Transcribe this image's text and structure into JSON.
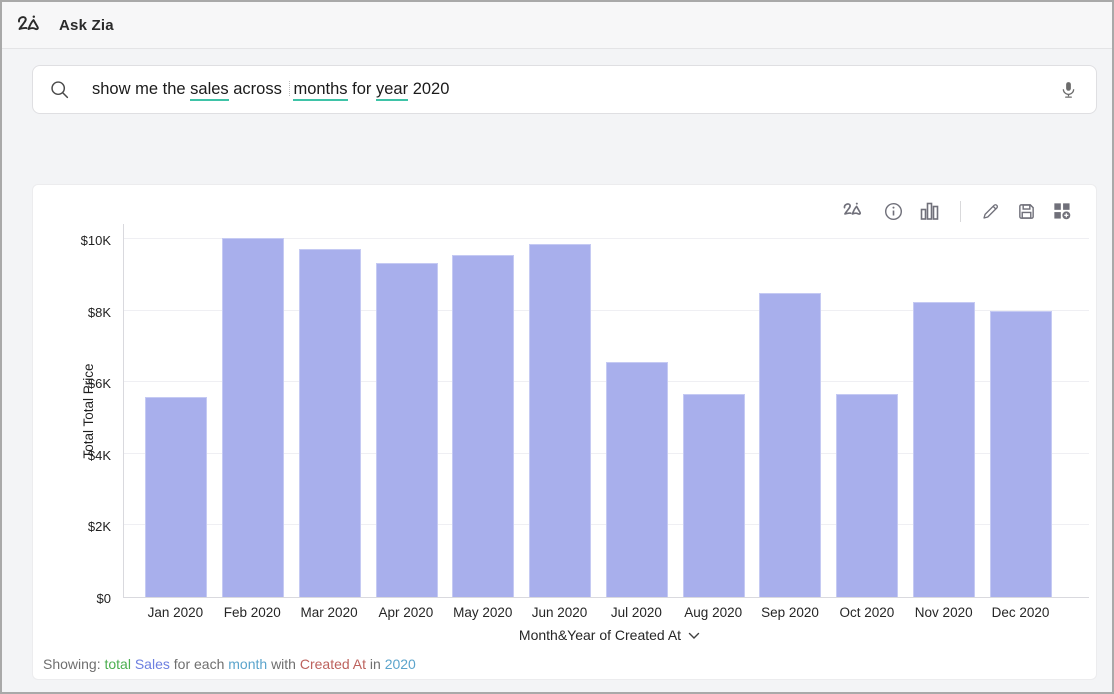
{
  "header": {
    "title": "Ask Zia",
    "logo_icon": "zia-logo-icon"
  },
  "search": {
    "icons": [
      "search-icon",
      "microphone-icon"
    ],
    "query_segments": [
      {
        "text": "show me the ",
        "underline": false
      },
      {
        "text": "sales",
        "underline": true
      },
      {
        "text": " across ",
        "underline": false
      },
      {
        "caret": true
      },
      {
        "text": "months",
        "underline": true
      },
      {
        "text": " for ",
        "underline": false
      },
      {
        "text": "year",
        "underline": true
      },
      {
        "text": " 2020",
        "underline": false
      }
    ],
    "underline_color": "#3ec3a7"
  },
  "toolbar": {
    "icons": [
      "zia-icon",
      "info-icon",
      "chart-type-icon",
      "edit-icon",
      "save-icon",
      "add-to-dashboard-icon"
    ]
  },
  "chart_data": {
    "type": "bar",
    "categories": [
      "Jan 2020",
      "Feb 2020",
      "Mar 2020",
      "Apr 2020",
      "May 2020",
      "Jun 2020",
      "Jul 2020",
      "Aug 2020",
      "Sep 2020",
      "Oct 2020",
      "Nov 2020",
      "Dec 2020"
    ],
    "values": [
      5600,
      10030,
      9720,
      9340,
      9550,
      9870,
      6560,
      5660,
      8500,
      5680,
      8250,
      8000
    ],
    "title": "",
    "xlabel": "Month&Year of Created At",
    "ylabel": "Total Total Price",
    "ylim": [
      0,
      10450
    ],
    "y_ticks": {
      "values": [
        0,
        2000,
        4000,
        6000,
        8000,
        10000
      ],
      "labels": [
        "$0",
        "$2K",
        "$4K",
        "$6K",
        "$8K",
        "$10K"
      ]
    },
    "grid": "horizontal",
    "legend": "none",
    "bar_color": "#a8afec"
  },
  "footer": {
    "segments": [
      {
        "text": "Showing:  ",
        "color": "#6f6f6f"
      },
      {
        "text": "total ",
        "color": "#4caf50"
      },
      {
        "text": "Sales ",
        "color": "#6c7fe0"
      },
      {
        "text": "for each ",
        "color": "#6f6f6f"
      },
      {
        "text": "month ",
        "color": "#5ba4cc"
      },
      {
        "text": "with ",
        "color": "#6f6f6f"
      },
      {
        "text": "Created At ",
        "color": "#bd625d"
      },
      {
        "text": "in ",
        "color": "#6f6f6f"
      },
      {
        "text": "2020",
        "color": "#5ba4cc"
      }
    ]
  }
}
